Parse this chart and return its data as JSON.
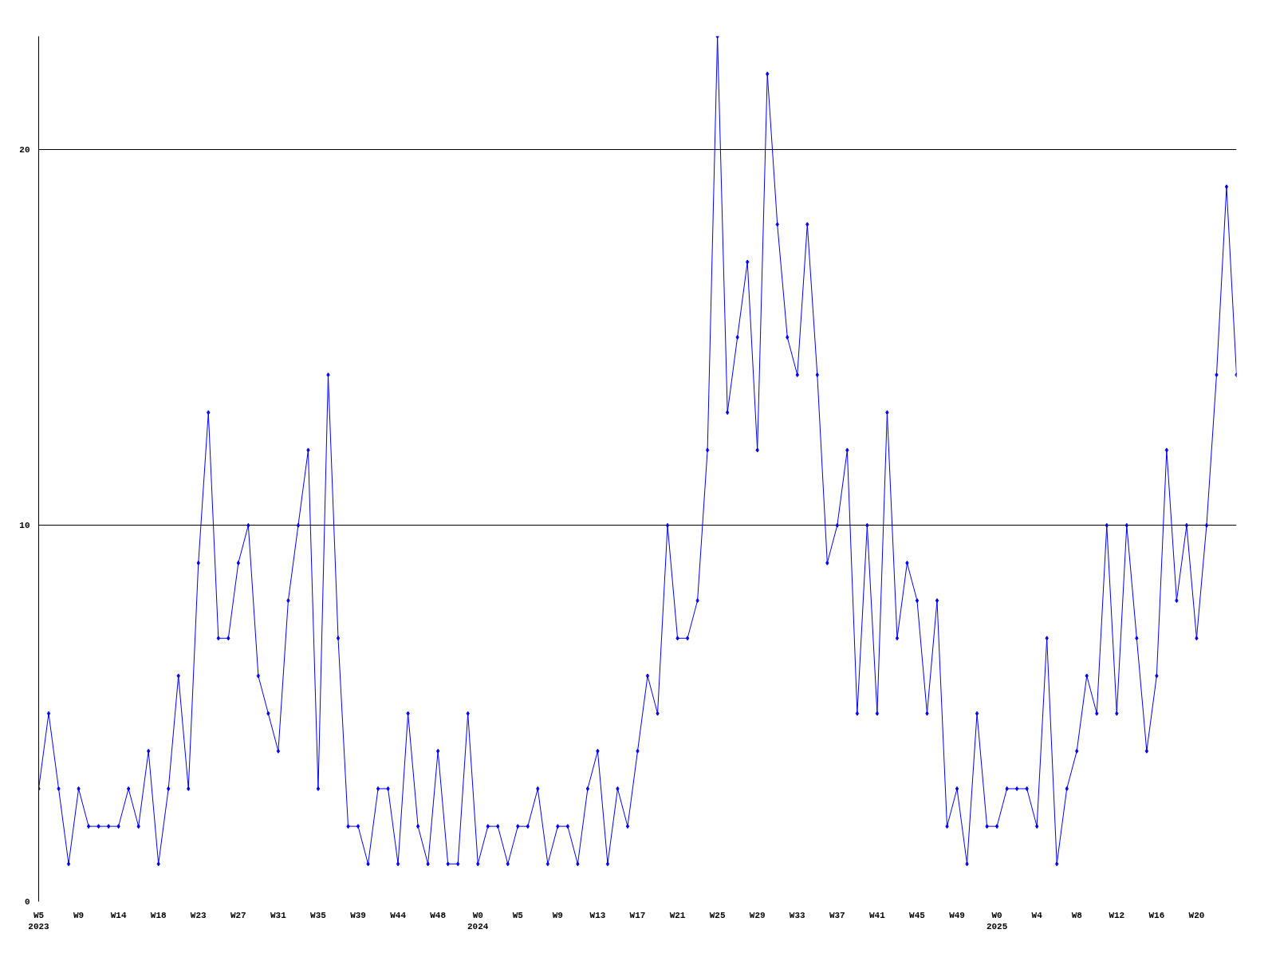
{
  "chart_data": {
    "type": "line",
    "categories": [
      "W5\n2023",
      null,
      null,
      null,
      "W9",
      null,
      null,
      null,
      "W14",
      null,
      null,
      null,
      "W18",
      null,
      null,
      null,
      "W23",
      null,
      null,
      null,
      "W27",
      null,
      null,
      null,
      "W31",
      null,
      null,
      null,
      "W35",
      null,
      null,
      null,
      "W39",
      null,
      null,
      null,
      "W44",
      null,
      null,
      null,
      "W48",
      null,
      null,
      null,
      "W0\n2024",
      null,
      null,
      null,
      "W5",
      null,
      null,
      null,
      "W9",
      null,
      null,
      null,
      "W13",
      null,
      null,
      null,
      "W17",
      null,
      null,
      null,
      "W21",
      null,
      null,
      null,
      "W25",
      null,
      null,
      null,
      "W29",
      null,
      null,
      null,
      "W33",
      null,
      null,
      null,
      "W37",
      null,
      null,
      null,
      "W41",
      null,
      null,
      null,
      "W45",
      null,
      null,
      null,
      "W49",
      null,
      null,
      null,
      "W0\n2025",
      null,
      null,
      null,
      "W4",
      null,
      null,
      null,
      "W8",
      null,
      null,
      null,
      "W12",
      null,
      null,
      null,
      "W16",
      null,
      null,
      null,
      "W20",
      null,
      null,
      null,
      null
    ],
    "series": [
      {
        "color": "#0000ff",
        "values": [
          3,
          5,
          3,
          1,
          3,
          2,
          2,
          2,
          2,
          3,
          2,
          4,
          1,
          3,
          6,
          3,
          9,
          13,
          7,
          7,
          9,
          10,
          6,
          5,
          4,
          8,
          10,
          12,
          3,
          14,
          7,
          2,
          2,
          1,
          3,
          3,
          1,
          5,
          2,
          1,
          4,
          1,
          1,
          5,
          1,
          2,
          2,
          1,
          2,
          2,
          3,
          1,
          2,
          2,
          1,
          3,
          4,
          1,
          3,
          2,
          4,
          6,
          5,
          10,
          7,
          7,
          8,
          12,
          23,
          13,
          15,
          17,
          12,
          22,
          18,
          15,
          14,
          18,
          14,
          9,
          10,
          12,
          5,
          10,
          5,
          13,
          7,
          9,
          8,
          5,
          8,
          2,
          3,
          1,
          5,
          2,
          2,
          3,
          3,
          3,
          2,
          7,
          1,
          3,
          4,
          6,
          5,
          10,
          5,
          10,
          7,
          4,
          6,
          12,
          8,
          10,
          7,
          10,
          14,
          19,
          14
        ]
      }
    ],
    "ylim": [
      0,
      23
    ],
    "yticks": [
      0,
      10,
      20
    ],
    "grid": "y",
    "marker": "diamond",
    "line_style": "solid"
  }
}
